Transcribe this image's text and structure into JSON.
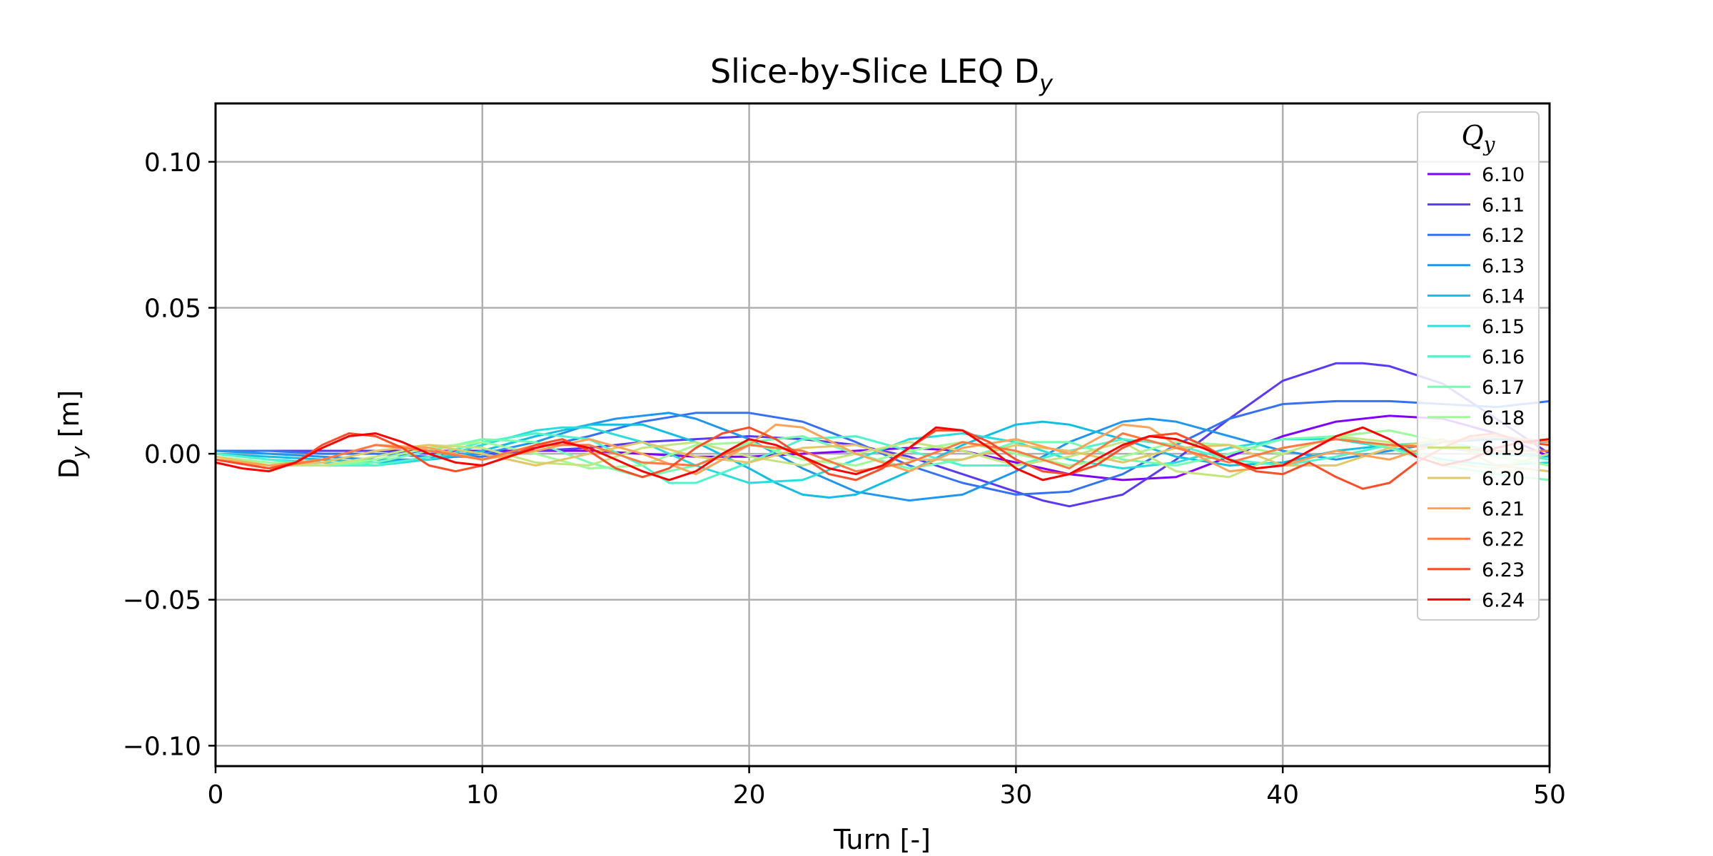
{
  "chart_data": {
    "type": "line",
    "title": "Slice-by-Slice LEQ D",
    "title_sub": "y",
    "xlabel": "Turn [-]",
    "ylabel": "D",
    "ylabel_sub": "y",
    "ylabel_unit": " [m]",
    "xlim": [
      0,
      50
    ],
    "ylim": [
      -0.107,
      0.12
    ],
    "xticks": [
      0,
      10,
      20,
      30,
      40,
      50
    ],
    "xtick_labels": [
      "0",
      "10",
      "20",
      "30",
      "40",
      "50"
    ],
    "yticks": [
      -0.1,
      -0.05,
      0.0,
      0.05,
      0.1
    ],
    "ytick_labels": [
      "−0.10",
      "−0.05",
      "0.00",
      "0.05",
      "0.10"
    ],
    "grid": true,
    "legend": {
      "title": "Q",
      "title_sub": "y",
      "placement": "top-right"
    },
    "series": [
      {
        "name": "6.10",
        "color": "#8000ff",
        "x": [
          0,
          2,
          4,
          6,
          8,
          10,
          12,
          14,
          16,
          18,
          20,
          22,
          24,
          26,
          28,
          30,
          32,
          34,
          36,
          38,
          40,
          42,
          44,
          46,
          48,
          50
        ],
        "y": [
          0.001,
          0.001,
          0.001,
          0.001,
          0.001,
          0.001,
          0.001,
          0.001,
          0.0,
          -0.001,
          -0.001,
          0.0,
          0.001,
          0.002,
          0.001,
          -0.003,
          -0.007,
          -0.009,
          -0.008,
          -0.001,
          0.006,
          0.011,
          0.013,
          0.012,
          0.007,
          -0.001
        ]
      },
      {
        "name": "6.11",
        "color": "#5a3af9",
        "x": [
          0,
          2,
          4,
          6,
          8,
          10,
          12,
          14,
          16,
          18,
          20,
          22,
          24,
          26,
          28,
          30,
          31,
          32,
          34,
          36,
          38,
          40,
          42,
          43,
          44,
          46,
          48,
          50
        ],
        "y": [
          0.001,
          0.001,
          0.001,
          0.001,
          0.0,
          0.0,
          0.001,
          0.002,
          0.004,
          0.005,
          0.006,
          0.005,
          0.003,
          -0.001,
          -0.007,
          -0.013,
          -0.016,
          -0.018,
          -0.014,
          -0.002,
          0.012,
          0.025,
          0.031,
          0.031,
          0.03,
          0.024,
          0.012,
          0.0
        ]
      },
      {
        "name": "6.12",
        "color": "#3572f2",
        "x": [
          0,
          2,
          4,
          6,
          8,
          10,
          12,
          14,
          16,
          18,
          19,
          20,
          22,
          24,
          26,
          28,
          30,
          32,
          34,
          36,
          38,
          40,
          42,
          44,
          46,
          48,
          50
        ],
        "y": [
          0.001,
          0.001,
          0.0,
          0.0,
          -0.001,
          -0.001,
          0.002,
          0.006,
          0.011,
          0.014,
          0.014,
          0.014,
          0.011,
          0.004,
          -0.004,
          -0.01,
          -0.014,
          -0.013,
          -0.007,
          0.003,
          0.012,
          0.017,
          0.018,
          0.018,
          0.017,
          0.016,
          0.018
        ]
      },
      {
        "name": "6.13",
        "color": "#1e96f2",
        "x": [
          0,
          2,
          4,
          6,
          8,
          10,
          12,
          14,
          15,
          16,
          17,
          18,
          20,
          22,
          24,
          26,
          28,
          30,
          32,
          34,
          35,
          36,
          38,
          40,
          42,
          44,
          46,
          48,
          50
        ],
        "y": [
          0.001,
          0.0,
          -0.001,
          -0.002,
          -0.002,
          0.0,
          0.004,
          0.01,
          0.012,
          0.013,
          0.014,
          0.012,
          0.005,
          -0.005,
          -0.013,
          -0.016,
          -0.014,
          -0.006,
          0.004,
          0.011,
          0.012,
          0.011,
          0.006,
          0.001,
          -0.002,
          0.001,
          0.004,
          0.005,
          0.004
        ]
      },
      {
        "name": "6.14",
        "color": "#11bfe4",
        "x": [
          0,
          2,
          4,
          6,
          8,
          10,
          12,
          14,
          16,
          18,
          20,
          21,
          22,
          23,
          24,
          26,
          28,
          30,
          31,
          32,
          34,
          36,
          38,
          40,
          42,
          44,
          46,
          48,
          50
        ],
        "y": [
          0.0,
          -0.001,
          -0.002,
          -0.003,
          -0.002,
          0.001,
          0.006,
          0.01,
          0.01,
          0.004,
          -0.005,
          -0.01,
          -0.014,
          -0.015,
          -0.014,
          -0.006,
          0.003,
          0.01,
          0.011,
          0.01,
          0.005,
          -0.001,
          -0.004,
          -0.003,
          0.001,
          0.003,
          0.002,
          0.0,
          -0.001
        ]
      },
      {
        "name": "6.15",
        "color": "#2adddd",
        "x": [
          0,
          2,
          4,
          6,
          8,
          10,
          12,
          13,
          14,
          16,
          18,
          20,
          22,
          24,
          26,
          28,
          30,
          32,
          34,
          36,
          38,
          40,
          42,
          44,
          46,
          48,
          50
        ],
        "y": [
          0.0,
          -0.002,
          -0.003,
          -0.004,
          -0.002,
          0.003,
          0.008,
          0.009,
          0.009,
          0.004,
          -0.004,
          -0.01,
          -0.009,
          -0.002,
          0.005,
          0.007,
          0.004,
          -0.002,
          -0.005,
          -0.003,
          0.002,
          0.005,
          0.005,
          0.002,
          -0.002,
          -0.004,
          -0.003
        ]
      },
      {
        "name": "6.16",
        "color": "#4ef5cb",
        "x": [
          0,
          2,
          4,
          6,
          8,
          10,
          12,
          14,
          16,
          17,
          18,
          20,
          22,
          24,
          26,
          28,
          30,
          32,
          34,
          36,
          38,
          40,
          42,
          44,
          46,
          48,
          50
        ],
        "y": [
          0.0,
          -0.002,
          -0.004,
          -0.004,
          -0.001,
          0.004,
          0.007,
          0.005,
          -0.004,
          -0.01,
          -0.01,
          -0.003,
          0.005,
          0.006,
          0.001,
          -0.004,
          -0.004,
          0.001,
          0.005,
          0.003,
          -0.002,
          -0.004,
          -0.001,
          0.003,
          0.004,
          0.001,
          -0.002
        ]
      },
      {
        "name": "6.17",
        "color": "#73fdb1",
        "x": [
          0,
          2,
          4,
          6,
          8,
          10,
          12,
          14,
          16,
          18,
          20,
          22,
          24,
          26,
          28,
          30,
          32,
          34,
          36,
          38,
          40,
          42,
          44,
          46,
          48,
          50
        ],
        "y": [
          -0.001,
          -0.003,
          -0.004,
          -0.003,
          0.001,
          0.005,
          0.004,
          -0.003,
          -0.008,
          -0.004,
          0.004,
          0.006,
          0.0,
          -0.005,
          -0.002,
          0.004,
          0.004,
          -0.002,
          -0.004,
          0.0,
          0.005,
          0.006,
          0.002,
          -0.004,
          -0.007,
          -0.009
        ]
      },
      {
        "name": "6.18",
        "color": "#9dfb98",
        "x": [
          0,
          2,
          4,
          6,
          8,
          10,
          12,
          14,
          16,
          18,
          20,
          22,
          24,
          26,
          28,
          30,
          32,
          34,
          36,
          38,
          40,
          42,
          44,
          46,
          48,
          50
        ],
        "y": [
          -0.001,
          -0.003,
          -0.004,
          -0.002,
          0.002,
          0.004,
          0.0,
          -0.005,
          -0.004,
          0.003,
          0.004,
          -0.002,
          -0.004,
          0.001,
          0.004,
          0.0,
          -0.004,
          -0.001,
          0.004,
          0.003,
          0.0,
          0.006,
          0.008,
          0.004,
          -0.001,
          -0.004
        ]
      },
      {
        "name": "6.19",
        "color": "#c4e57d",
        "x": [
          0,
          2,
          4,
          6,
          8,
          10,
          12,
          14,
          16,
          18,
          20,
          22,
          24,
          26,
          28,
          30,
          32,
          34,
          36,
          38,
          40,
          42,
          44,
          46,
          48,
          50
        ],
        "y": [
          -0.001,
          -0.004,
          -0.004,
          -0.001,
          0.003,
          0.002,
          -0.003,
          -0.004,
          0.002,
          0.004,
          -0.001,
          -0.004,
          0.0,
          0.004,
          0.001,
          -0.004,
          -0.001,
          0.004,
          -0.006,
          -0.008,
          0.0,
          0.006,
          0.004,
          -0.003,
          -0.005,
          0.0
        ]
      },
      {
        "name": "6.20",
        "color": "#e2c766",
        "x": [
          0,
          2,
          4,
          6,
          8,
          10,
          12,
          14,
          16,
          18,
          20,
          22,
          24,
          26,
          28,
          30,
          32,
          34,
          36,
          38,
          40,
          42,
          44,
          46,
          48,
          50
        ],
        "y": [
          -0.001,
          -0.004,
          -0.003,
          0.001,
          0.003,
          0.0,
          -0.004,
          0.0,
          0.004,
          -0.001,
          -0.003,
          0.002,
          0.003,
          -0.002,
          -0.002,
          0.003,
          0.001,
          -0.003,
          0.002,
          0.003,
          -0.004,
          -0.004,
          0.002,
          0.005,
          -0.004,
          -0.006
        ]
      },
      {
        "name": "6.21",
        "color": "#ffa256",
        "x": [
          0,
          2,
          4,
          6,
          8,
          10,
          12,
          14,
          16,
          18,
          20,
          21,
          22,
          24,
          26,
          28,
          30,
          32,
          34,
          35,
          36,
          38,
          40,
          42,
          44,
          46,
          48,
          50
        ],
        "y": [
          -0.002,
          -0.004,
          -0.002,
          0.003,
          0.002,
          -0.002,
          0.001,
          0.005,
          0.0,
          -0.007,
          0.003,
          0.01,
          0.009,
          0.0,
          -0.006,
          0.002,
          0.005,
          0.0,
          0.01,
          0.009,
          0.003,
          -0.006,
          -0.004,
          0.001,
          -0.002,
          0.004,
          0.006,
          0.004
        ]
      },
      {
        "name": "6.22",
        "color": "#ff7a40",
        "x": [
          0,
          2,
          4,
          6,
          8,
          10,
          12,
          14,
          16,
          18,
          20,
          22,
          24,
          26,
          28,
          30,
          32,
          34,
          36,
          38,
          40,
          42,
          44,
          46,
          48,
          50
        ],
        "y": [
          -0.002,
          -0.005,
          -0.002,
          0.003,
          0.001,
          -0.002,
          0.003,
          0.003,
          -0.003,
          -0.004,
          0.003,
          0.001,
          -0.006,
          -0.003,
          0.004,
          0.001,
          -0.005,
          0.007,
          0.002,
          -0.003,
          0.002,
          0.005,
          0.003,
          0.002,
          0.001,
          0.001
        ]
      },
      {
        "name": "6.23",
        "color": "#ff4c27",
        "x": [
          0,
          2,
          3,
          4,
          5,
          6,
          7,
          8,
          9,
          10,
          11,
          12,
          13,
          14,
          15,
          16,
          17,
          18,
          19,
          20,
          21,
          22,
          23,
          24,
          25,
          26,
          27,
          28,
          29,
          30,
          31,
          32,
          33,
          34,
          35,
          36,
          37,
          38,
          39,
          40,
          41,
          42,
          43,
          44,
          45,
          46,
          47,
          48,
          49,
          50
        ],
        "y": [
          -0.002,
          -0.005,
          -0.003,
          0.003,
          0.007,
          0.006,
          0.002,
          -0.004,
          -0.006,
          -0.004,
          -0.001,
          0.003,
          0.005,
          0.001,
          -0.005,
          -0.008,
          -0.005,
          0.002,
          0.007,
          0.009,
          0.005,
          -0.001,
          -0.007,
          -0.009,
          -0.005,
          0.002,
          0.008,
          0.008,
          0.004,
          -0.002,
          -0.006,
          -0.007,
          -0.004,
          0.002,
          0.006,
          0.007,
          0.003,
          -0.002,
          -0.006,
          -0.007,
          -0.003,
          -0.008,
          -0.012,
          -0.01,
          -0.003,
          0.002,
          0.006,
          0.007,
          0.004,
          0.003
        ]
      },
      {
        "name": "6.24",
        "color": "#ff0000",
        "x": [
          0,
          1,
          2,
          3,
          4,
          5,
          6,
          7,
          8,
          9,
          10,
          11,
          12,
          13,
          14,
          15,
          16,
          17,
          18,
          19,
          20,
          21,
          22,
          23,
          24,
          25,
          26,
          27,
          28,
          29,
          30,
          31,
          32,
          33,
          34,
          35,
          36,
          37,
          38,
          39,
          40,
          41,
          42,
          43,
          44,
          45,
          46,
          47,
          48,
          49,
          50
        ],
        "y": [
          -0.003,
          -0.005,
          -0.006,
          -0.003,
          0.002,
          0.006,
          0.007,
          0.004,
          0.0,
          -0.003,
          -0.004,
          -0.001,
          0.002,
          0.004,
          0.002,
          -0.002,
          -0.006,
          -0.009,
          -0.006,
          0.0,
          0.005,
          0.003,
          -0.001,
          -0.005,
          -0.007,
          -0.004,
          0.002,
          0.009,
          0.008,
          0.002,
          -0.005,
          -0.009,
          -0.007,
          -0.002,
          0.003,
          0.006,
          0.005,
          0.002,
          -0.002,
          -0.005,
          -0.004,
          0.001,
          0.006,
          0.009,
          0.005,
          -0.001,
          -0.004,
          -0.002,
          0.002,
          0.004,
          0.005
        ]
      }
    ]
  }
}
